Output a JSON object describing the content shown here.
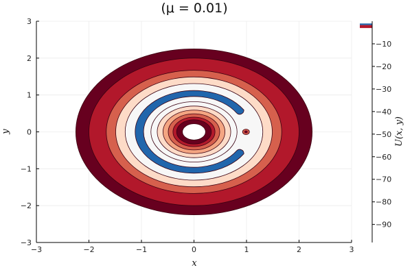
{
  "chart_data": {
    "type": "contour",
    "title": "(μ = 0.01)",
    "xlabel": "x",
    "ylabel": "y",
    "colorbar_label": "U(x, y)",
    "xlim": [
      -3,
      3
    ],
    "ylim": [
      -3,
      3
    ],
    "x_ticks": [
      -3,
      -2,
      -1,
      0,
      1,
      2,
      3
    ],
    "y_ticks": [
      -3,
      -2,
      -1,
      0,
      1,
      2,
      3
    ],
    "x_tick_labels": [
      "−3",
      "−2",
      "−1",
      "0",
      "1",
      "2",
      "3"
    ],
    "y_tick_labels": [
      "−3",
      "−2",
      "−1",
      "0",
      "1",
      "2",
      "3"
    ],
    "colorbar_ticks": [
      -10,
      -20,
      -30,
      -40,
      -50,
      -60,
      -70,
      -80,
      -90
    ],
    "colorbar_tick_labels": [
      "−10",
      "−20",
      "−30",
      "−40",
      "−50",
      "−60",
      "−70",
      "−80",
      "−90"
    ],
    "colorbar_range": [
      -98,
      0
    ],
    "grid": true,
    "colors": {
      "darkest": "#67001f",
      "dark": "#b2182b",
      "mid": "#d6604d",
      "light": "#f4a582",
      "pale": "#fddbc7",
      "white": "#f7f7f7",
      "blue": "#2166ac"
    },
    "bands_outer_to_inner": [
      {
        "radius": 2.25,
        "color": "#67001f"
      },
      {
        "radius": 2.0,
        "color": "#b2182b"
      },
      {
        "radius": 1.67,
        "color": "#d6604d"
      },
      {
        "radius": 1.49,
        "color": "#fddbc7"
      },
      {
        "radius": 1.31,
        "color": "#f7f7f7"
      }
    ],
    "blue_band": {
      "r_outer": 1.12,
      "r_inner": 0.96,
      "gap_center_angle_deg": 0,
      "gap_half_width_deg": 32
    },
    "inner_bands_outer_to_inner": [
      {
        "radius": 0.82,
        "color": "#f7f7f7"
      },
      {
        "radius": 0.7,
        "color": "#fddbc7"
      },
      {
        "radius": 0.59,
        "color": "#f4a582"
      },
      {
        "radius": 0.49,
        "color": "#d6604d"
      },
      {
        "radius": 0.4,
        "color": "#b2182b"
      },
      {
        "radius": 0.33,
        "color": "#67001f"
      },
      {
        "radius": 0.22,
        "color": "#ffffff"
      }
    ],
    "secondary_mass": {
      "x": 0.99,
      "y": 0.0
    }
  }
}
